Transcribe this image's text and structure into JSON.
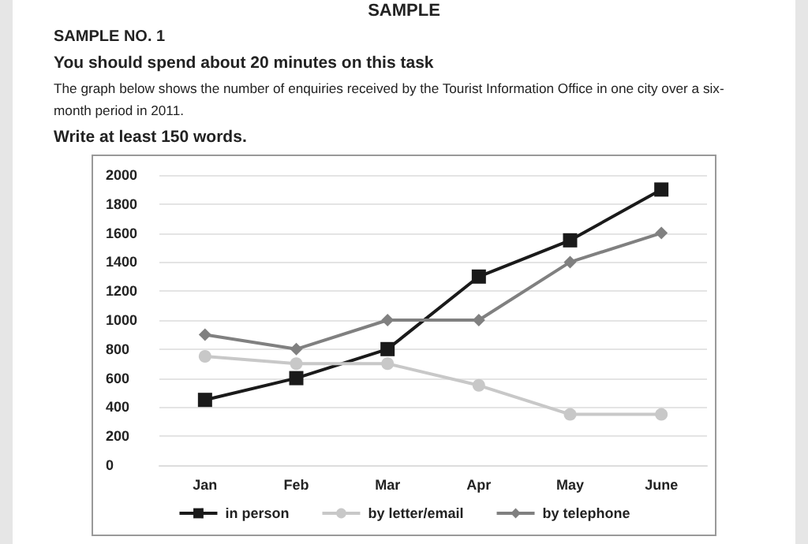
{
  "chart_data": {
    "type": "line",
    "title": "SAMPLE",
    "subtitle": "SAMPLE NO. 1",
    "annotations": [
      "You should spend about 20 minutes on this task",
      "The graph below shows the number of enquiries received by the Tourist Information Office in one city over a six-month period in 2011.",
      "Write at least 150 words."
    ],
    "categories": [
      "Jan",
      "Feb",
      "Mar",
      "Apr",
      "May",
      "June"
    ],
    "series": [
      {
        "name": "in person",
        "color": "#1a1a1a",
        "marker": "square",
        "values": [
          450,
          600,
          800,
          1300,
          1550,
          1900
        ]
      },
      {
        "name": "by letter/email",
        "color": "#c8c8c8",
        "marker": "circle",
        "values": [
          750,
          700,
          700,
          550,
          350,
          350
        ]
      },
      {
        "name": "by telephone",
        "color": "#808080",
        "marker": "diamond",
        "values": [
          900,
          800,
          1000,
          1000,
          1400,
          1600
        ]
      }
    ],
    "ylim": [
      0,
      2000
    ],
    "yticks": [
      0,
      200,
      400,
      600,
      800,
      1000,
      1200,
      1400,
      1600,
      1800,
      2000
    ],
    "grid": "y",
    "legend": "bottom"
  }
}
